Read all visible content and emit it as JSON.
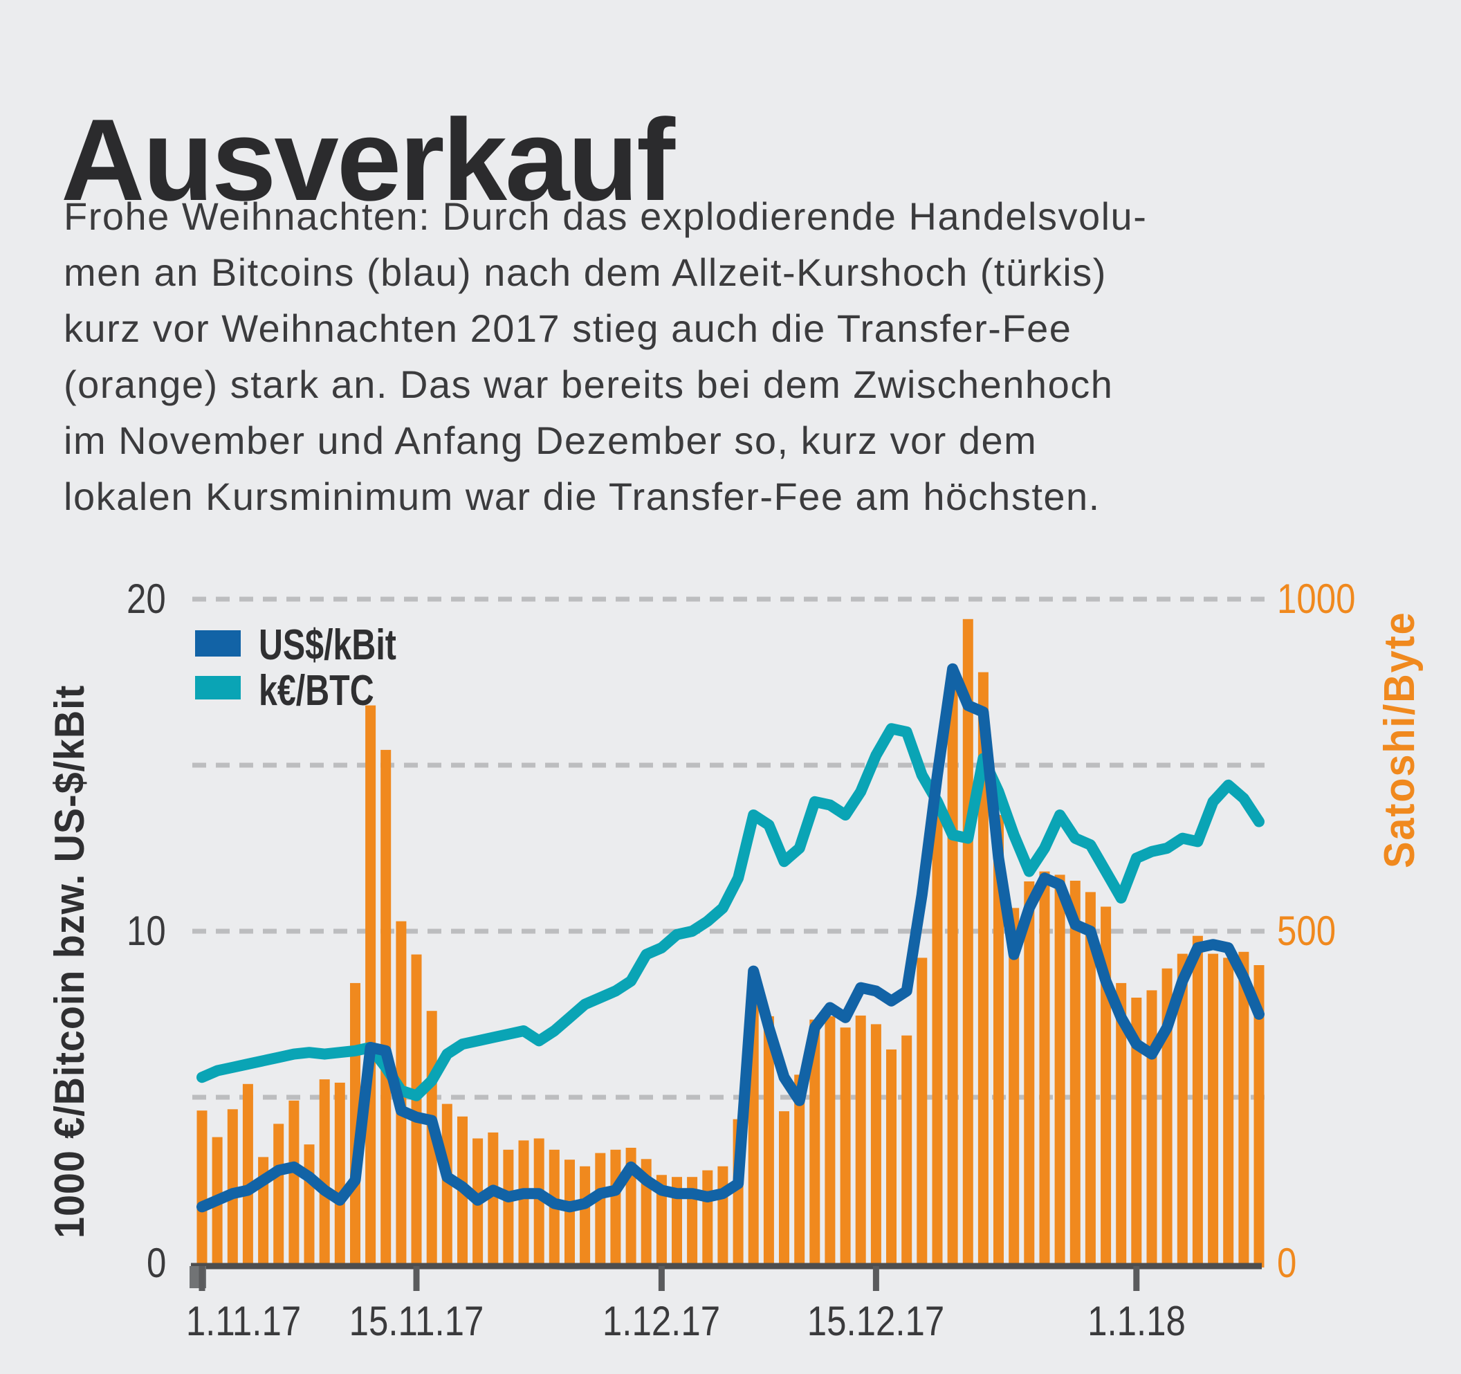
{
  "title": "Ausverkauf",
  "description_lines": [
    "Frohe Weihnachten: Durch das explodierende Handelsvolu-",
    "men an Bitcoins (blau) nach dem Allzeit-Kurshoch (türkis)",
    "kurz vor Weihnachten 2017 stieg auch die Transfer-Fee",
    "(orange) stark an. Das war bereits bei dem Zwischenhoch",
    "im November und Anfang Dezember so, kurz vor dem",
    "lokalen Kursminimum war die Transfer-Fee am höchsten."
  ],
  "colors": {
    "background": "#EBECEE",
    "bar_orange": "#F0891E",
    "usd_line_blue": "#1263A6",
    "eur_line_teal": "#0AA4B5",
    "grid": "#BCBDBF",
    "axis": "#4D4D4E",
    "tick_mark": "#5A5B5D",
    "tick_text": "#3A3A3C",
    "orange_text": "#F0891E",
    "title_text": "#2B2B2D",
    "body_text": "#3B3B3D"
  },
  "chart_data": {
    "type": "composite",
    "subtype": "bar + 2 lines, dual axis",
    "grid": "horizontal dashed lines at left-axis 5,10,15,20 (right 250,500,750,1000)",
    "legend_position": "top-left inside plot",
    "left_axis": {
      "label": "1000 €/Bitcoin bzw. US-$/kBit",
      "tick_labels": [
        "20",
        "10",
        "0"
      ],
      "range": [
        0,
        20
      ]
    },
    "right_axis": {
      "label": "Satoshi/Byte",
      "tick_labels": [
        "1000",
        "500",
        "0"
      ],
      "range": [
        0,
        1000
      ]
    },
    "x_tick_labels": [
      "1.11.17",
      "15.11.17",
      "1.12.17",
      "15.12.17",
      "1.1.18"
    ],
    "legend": [
      {
        "label": "US$/kBit",
        "color": "#1263A6"
      },
      {
        "label": "k€/BTC",
        "color": "#0AA4B5"
      }
    ],
    "categories": [
      "1.11.17",
      "2.11.17",
      "3.11.17",
      "4.11.17",
      "5.11.17",
      "6.11.17",
      "7.11.17",
      "8.11.17",
      "9.11.17",
      "10.11.17",
      "11.11.17",
      "12.11.17",
      "13.11.17",
      "14.11.17",
      "15.11.17",
      "16.11.17",
      "17.11.17",
      "18.11.17",
      "19.11.17",
      "20.11.17",
      "21.11.17",
      "22.11.17",
      "23.11.17",
      "24.11.17",
      "25.11.17",
      "26.11.17",
      "27.11.17",
      "28.11.17",
      "29.11.17",
      "30.11.17",
      "1.12.17",
      "2.12.17",
      "3.12.17",
      "4.12.17",
      "5.12.17",
      "6.12.17",
      "7.12.17",
      "8.12.17",
      "9.12.17",
      "10.12.17",
      "11.12.17",
      "12.12.17",
      "13.12.17",
      "14.12.17",
      "15.12.17",
      "16.12.17",
      "17.12.17",
      "18.12.17",
      "19.12.17",
      "20.12.17",
      "21.12.17",
      "22.12.17",
      "23.12.17",
      "24.12.17",
      "25.12.17",
      "26.12.17",
      "27.12.17",
      "28.12.17",
      "29.12.17",
      "30.12.17",
      "31.12.17",
      "1.1.18",
      "2.1.18",
      "3.1.18",
      "4.1.18",
      "5.1.18",
      "6.1.18",
      "7.1.18",
      "8.1.18",
      "9.1.18"
    ],
    "series": [
      {
        "name": "Transfer-Fee",
        "type": "bar",
        "axis": "right",
        "unit": "Satoshi/Byte",
        "color": "#F0891E",
        "values": [
          230,
          190,
          232,
          270,
          160,
          210,
          245,
          179,
          277,
          272,
          422,
          840,
          773,
          515,
          465,
          380,
          240,
          221,
          188,
          197,
          171,
          185,
          188,
          171,
          156,
          146,
          166,
          171,
          174,
          157,
          133,
          130,
          130,
          140,
          146,
          217,
          432,
          372,
          229,
          284,
          367,
          372,
          355,
          373,
          360,
          322,
          343,
          460,
          675,
          890,
          970,
          890,
          675,
          535,
          575,
          590,
          585,
          576,
          559,
          537,
          422,
          400,
          411,
          444,
          466,
          493,
          466,
          460,
          469,
          449
        ]
      },
      {
        "name": "US$/kBit",
        "type": "line",
        "axis": "left",
        "unit": "US-$/kBit",
        "color": "#1263A6",
        "values": [
          1.7,
          1.9,
          2.1,
          2.2,
          2.5,
          2.8,
          2.9,
          2.6,
          2.2,
          1.9,
          2.5,
          6.5,
          6.4,
          4.6,
          4.4,
          4.3,
          2.6,
          2.3,
          1.9,
          2.2,
          2.0,
          2.1,
          2.1,
          1.8,
          1.7,
          1.8,
          2.1,
          2.2,
          2.9,
          2.5,
          2.2,
          2.1,
          2.1,
          2.0,
          2.1,
          2.4,
          8.8,
          7.1,
          5.6,
          4.9,
          7.1,
          7.7,
          7.4,
          8.3,
          8.2,
          7.9,
          8.2,
          11.1,
          14.7,
          17.9,
          16.8,
          16.6,
          12.2,
          9.3,
          10.7,
          11.6,
          11.4,
          10.2,
          10.0,
          8.5,
          7.4,
          6.6,
          6.3,
          7.1,
          8.5,
          9.5,
          9.6,
          9.5,
          8.6,
          7.5
        ]
      },
      {
        "name": "k€/BTC",
        "type": "line",
        "axis": "left",
        "unit": "1000 €/Bitcoin",
        "color": "#0AA4B5",
        "values": [
          5.6,
          5.8,
          5.9,
          6.0,
          6.1,
          6.2,
          6.3,
          6.35,
          6.3,
          6.35,
          6.4,
          6.5,
          5.9,
          5.2,
          5.05,
          5.5,
          6.3,
          6.6,
          6.7,
          6.8,
          6.9,
          7.0,
          6.7,
          7.0,
          7.4,
          7.8,
          8.0,
          8.2,
          8.5,
          9.3,
          9.5,
          9.9,
          10.0,
          10.3,
          10.7,
          11.6,
          13.5,
          13.2,
          12.1,
          12.5,
          13.9,
          13.8,
          13.5,
          14.2,
          15.3,
          16.1,
          16.0,
          14.7,
          13.9,
          12.9,
          12.8,
          15.2,
          14.2,
          12.9,
          11.8,
          12.5,
          13.5,
          12.8,
          12.6,
          11.8,
          11.0,
          12.2,
          12.4,
          12.5,
          12.8,
          12.7,
          13.9,
          14.4,
          14.0,
          13.3
        ]
      }
    ]
  }
}
